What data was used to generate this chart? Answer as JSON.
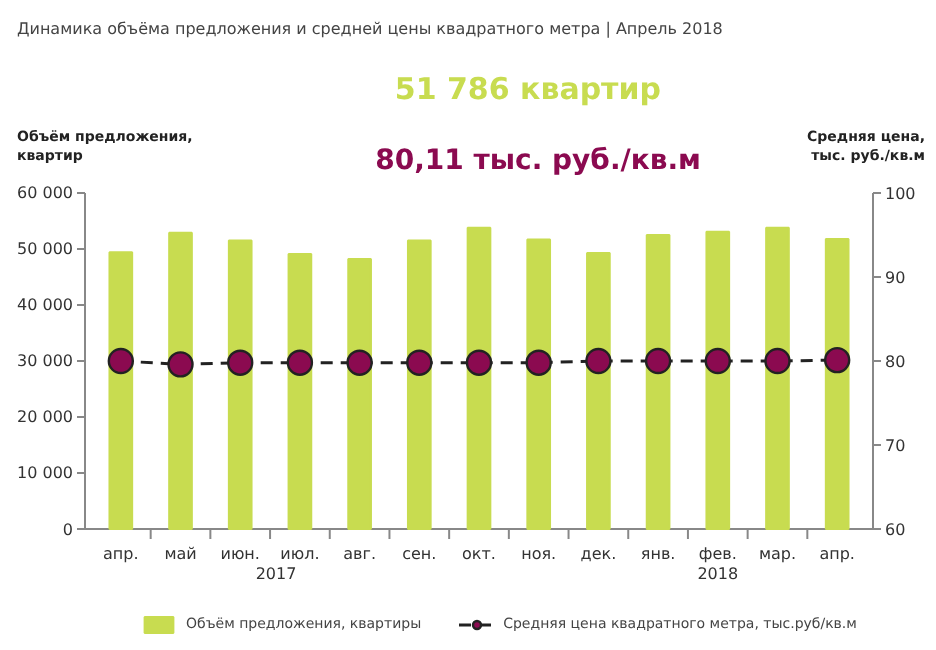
{
  "chart_data": {
    "type": "bar",
    "title": "Динамика объёма предложения и средней цены квадратного метра | Апрель 2018",
    "ylabel": "Объём предложения,\nквартир",
    "y2label": "Средняя цена,\nтыс. руб./кв.м",
    "categories": [
      "апр.",
      "май",
      "июн.",
      "июл.",
      "авг.",
      "сен.",
      "окт.",
      "ноя.",
      "дек.",
      "янв.",
      "фев.",
      "мар.",
      "апр."
    ],
    "series": [
      {
        "name": "Объём предложения, квартиры",
        "color": "#c8dc50",
        "values": [
          49400,
          52900,
          51500,
          49100,
          48200,
          51500,
          53800,
          51700,
          49300,
          52500,
          53100,
          53800,
          51786
        ]
      },
      {
        "name": "Средняя цена квадратного метра, тыс.руб/кв.м",
        "type": "line",
        "axis": "y2",
        "color": "#8b0a50",
        "marker": "circle",
        "line_style": "dashed",
        "values": [
          80.0,
          79.6,
          79.8,
          79.8,
          79.8,
          79.8,
          79.8,
          79.8,
          80.0,
          80.0,
          80.0,
          80.0,
          80.11
        ]
      }
    ],
    "ylim": [
      0,
      60000
    ],
    "yticks": [
      {
        "value": 0,
        "label": "0"
      },
      {
        "value": 10000,
        "label": "10 000"
      },
      {
        "value": 20000,
        "label": "20 000"
      },
      {
        "value": 30000,
        "label": "30 000"
      },
      {
        "value": 40000,
        "label": "40 000"
      },
      {
        "value": 50000,
        "label": "50 000"
      },
      {
        "value": 60000,
        "label": "60 000"
      }
    ],
    "y2lim": [
      60,
      100
    ],
    "y2ticks": [
      60,
      70,
      80,
      90,
      100
    ],
    "annotations": [
      "2017",
      "2018",
      "51 786 квартир",
      "80,11 тыс. руб./кв.м"
    ],
    "grid": false,
    "legend": "bottom"
  }
}
